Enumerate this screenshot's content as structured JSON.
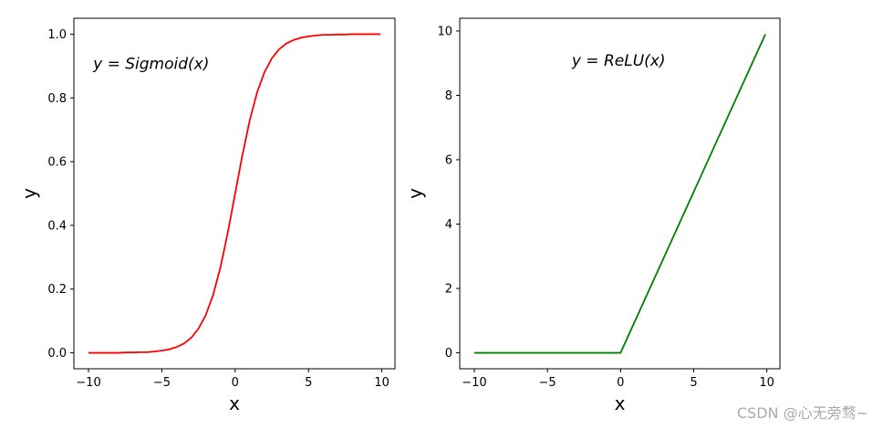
{
  "chart_data": [
    {
      "type": "line",
      "annotation": "y = Sigmoid(x)",
      "xlabel": "x",
      "ylabel": "y",
      "x": [
        -10,
        -9.5,
        -9,
        -8.5,
        -8,
        -7.5,
        -7,
        -6.5,
        -6,
        -5.5,
        -5,
        -4.5,
        -4,
        -3.5,
        -3,
        -2.5,
        -2,
        -1.5,
        -1,
        -0.5,
        0,
        0.5,
        1,
        1.5,
        2,
        2.5,
        3,
        3.5,
        4,
        4.5,
        5,
        5.5,
        6,
        6.5,
        7,
        7.5,
        8,
        8.5,
        9,
        9.5,
        9.9
      ],
      "series": [
        {
          "color": "#ff0000",
          "values": [
            0.0,
            0.0,
            0.0,
            0.0,
            0.0,
            0.001,
            0.001,
            0.002,
            0.002,
            0.004,
            0.007,
            0.011,
            0.018,
            0.029,
            0.047,
            0.076,
            0.119,
            0.182,
            0.269,
            0.378,
            0.5,
            0.622,
            0.731,
            0.818,
            0.881,
            0.924,
            0.953,
            0.971,
            0.982,
            0.989,
            0.993,
            0.996,
            0.998,
            0.998,
            0.999,
            0.999,
            1.0,
            1.0,
            1.0,
            1.0,
            1.0
          ]
        }
      ],
      "xlim": [
        -10.995,
        10.895
      ],
      "ylim": [
        -0.05,
        1.05
      ],
      "xticks": [
        {
          "value": -10,
          "label": "−10"
        },
        {
          "value": -5,
          "label": "−5"
        },
        0,
        5,
        10
      ],
      "yticks": [
        {
          "value": 0,
          "label": "0.0"
        },
        0.2,
        0.4,
        0.6,
        0.8,
        {
          "value": 1,
          "label": "1.0"
        }
      ]
    },
    {
      "type": "line",
      "annotation": "y = ReLU(x)",
      "xlabel": "x",
      "ylabel": "y",
      "x": [
        -10,
        0,
        9.9
      ],
      "series": [
        {
          "color": "#008000",
          "values": [
            0,
            0,
            9.9
          ]
        }
      ],
      "xlim": [
        -10.995,
        10.895
      ],
      "ylim": [
        -0.495,
        10.395
      ],
      "xticks": [
        {
          "value": -10,
          "label": "−10"
        },
        {
          "value": -5,
          "label": "−5"
        },
        0,
        5,
        10
      ],
      "yticks": [
        0,
        2,
        4,
        6,
        8,
        10
      ]
    }
  ],
  "watermark": "CSDN @心无旁骛~"
}
